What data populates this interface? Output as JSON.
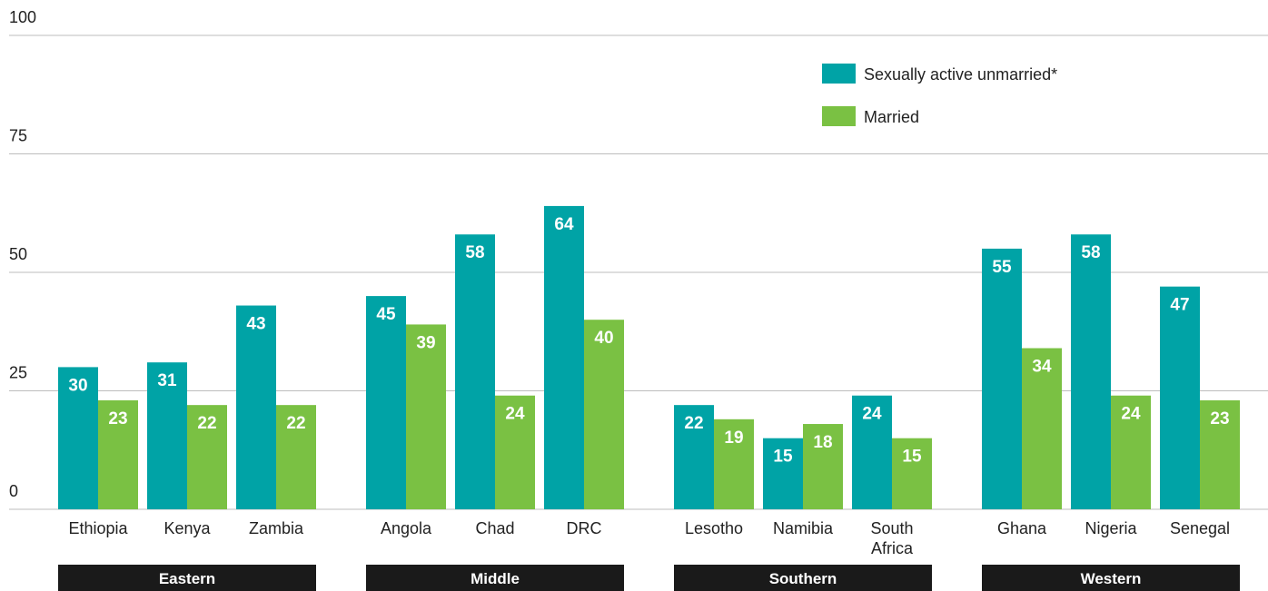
{
  "chart_data": {
    "type": "bar",
    "groups": [
      {
        "name": "Eastern",
        "categories": [
          "Ethiopia",
          "Kenya",
          "Zambia"
        ]
      },
      {
        "name": "Middle",
        "categories": [
          "Angola",
          "Chad",
          "DRC"
        ]
      },
      {
        "name": "Southern",
        "categories": [
          "Lesotho",
          "Namibia",
          "South Africa"
        ]
      },
      {
        "name": "Western",
        "categories": [
          "Ghana",
          "Nigeria",
          "Senegal"
        ]
      }
    ],
    "series": [
      {
        "name": "Sexually active unmarried*",
        "color": "#00a3a6",
        "values": [
          30,
          31,
          43,
          45,
          58,
          64,
          22,
          15,
          24,
          55,
          58,
          47
        ]
      },
      {
        "name": "Married",
        "color": "#7ac143",
        "values": [
          23,
          22,
          22,
          39,
          24,
          40,
          19,
          18,
          15,
          34,
          24,
          23
        ]
      }
    ],
    "ylim": [
      0,
      100
    ],
    "yticks": [
      0,
      25,
      50,
      75,
      100
    ],
    "grid": true,
    "legend": "top-right"
  }
}
